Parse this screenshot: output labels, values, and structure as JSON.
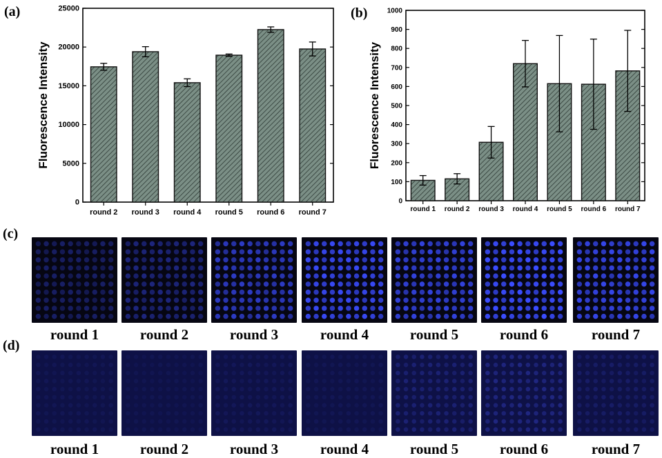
{
  "panels": {
    "a": "(a)",
    "b": "(b)",
    "c": "(c)",
    "d": "(d)"
  },
  "chart_data": [
    {
      "type": "bar",
      "panel": "(a)",
      "ylabel": "Fluorescence Intensity",
      "xlabel": "",
      "categories": [
        "round 2",
        "round 3",
        "round 4",
        "round 5",
        "round 6",
        "round 7"
      ],
      "values": [
        17450,
        19400,
        15400,
        18950,
        22250,
        19750
      ],
      "errors": [
        450,
        650,
        500,
        150,
        350,
        900
      ],
      "ylim": [
        0,
        25000
      ],
      "yticks": [
        "0",
        "5000",
        "10000",
        "15000",
        "20000",
        "25000"
      ],
      "bar_color": "#7b8f86",
      "hatch": "diagonal",
      "grid": false
    },
    {
      "type": "bar",
      "panel": "(b)",
      "ylabel": "Fluorescence Intensity",
      "xlabel": "",
      "categories": [
        "round 1",
        "round 2",
        "round 3",
        "round 4",
        "round 5",
        "round 6",
        "round 7"
      ],
      "values": [
        107,
        115,
        307,
        720,
        615,
        612,
        682
      ],
      "errors": [
        25,
        27,
        83,
        122,
        253,
        237,
        213
      ],
      "ylim": [
        0,
        1000
      ],
      "yticks": [
        "0",
        "100",
        "200",
        "300",
        "400",
        "500",
        "600",
        "700",
        "800",
        "900",
        "1000"
      ],
      "bar_color": "#7b8f86",
      "hatch": "diagonal",
      "grid": false
    }
  ],
  "arrays_c": {
    "labels": [
      "round 1",
      "round 2",
      "round 3",
      "round 4",
      "round 5",
      "round 6",
      "round 7"
    ],
    "spot_color": "#3a4cff",
    "background": "#060612",
    "brightness": [
      0.35,
      0.45,
      0.75,
      0.95,
      0.85,
      1.0,
      0.9
    ]
  },
  "arrays_d": {
    "labels": [
      "round 1",
      "round 2",
      "round 3",
      "round 4",
      "round 5",
      "round 6",
      "round 7"
    ],
    "spot_color": "#3540c8",
    "background": "#0e1146",
    "brightness": [
      0.12,
      0.1,
      0.15,
      0.12,
      0.35,
      0.45,
      0.25
    ]
  }
}
